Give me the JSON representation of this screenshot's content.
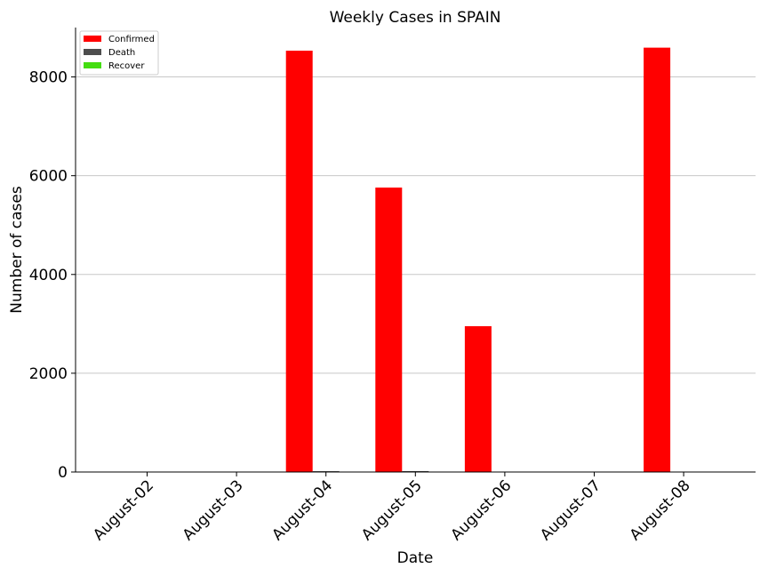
{
  "chart_data": {
    "type": "bar",
    "title": "Weekly Cases in SPAIN",
    "xlabel": "Date",
    "ylabel": "Number of cases",
    "categories": [
      "August-02",
      "August-03",
      "August-04",
      "August-05",
      "August-06",
      "August-07",
      "August-08"
    ],
    "series": [
      {
        "name": "Confirmed",
        "color": "#ff0000",
        "values": [
          0,
          0,
          8532,
          5760,
          2953,
          0,
          8593
        ]
      },
      {
        "name": "Death",
        "color": "#4d4d4d",
        "values": [
          0,
          0,
          17,
          19,
          0,
          0,
          0
        ]
      },
      {
        "name": "Recover",
        "color": "#44dd11",
        "values": [
          0,
          0,
          0,
          0,
          0,
          0,
          0
        ]
      }
    ],
    "yticks": [
      0,
      2000,
      4000,
      6000,
      8000
    ],
    "ylim": [
      0,
      9000
    ],
    "grid": "horizontal",
    "legend_position": "top-left"
  }
}
